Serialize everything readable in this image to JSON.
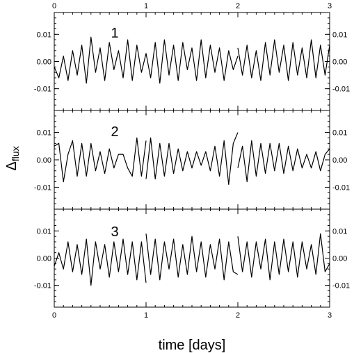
{
  "chart_data": {
    "type": "line",
    "xlabel": "time [days]",
    "ylabel": {
      "symbol": "Δ",
      "subscript": "flux"
    },
    "xlim": [
      0,
      3
    ],
    "xticks": [
      "0",
      "1",
      "2",
      "3"
    ],
    "ylim": [
      -0.018,
      0.018
    ],
    "yticks": [
      "0.01",
      "0.00",
      "-0.01"
    ],
    "ytick_values": [
      0.01,
      0.0,
      -0.01
    ],
    "line_color": "#000000",
    "panels": [
      {
        "label": "1",
        "series": [
          {
            "x": [
              0.0,
              0.05,
              0.1,
              0.15,
              0.2,
              0.25,
              0.3,
              0.35,
              0.4,
              0.45,
              0.5,
              0.55,
              0.6,
              0.65,
              0.7,
              0.75,
              0.8,
              0.85,
              0.9,
              0.95,
              1.0,
              1.05,
              1.1,
              1.15,
              1.2,
              1.25,
              1.3,
              1.35,
              1.4,
              1.45,
              1.5,
              1.55,
              1.6,
              1.65,
              1.7,
              1.75,
              1.8,
              1.85,
              1.9,
              1.95,
              2.0
            ],
            "y": [
              -0.002,
              -0.006,
              0.002,
              -0.007,
              0.004,
              -0.005,
              0.006,
              -0.008,
              0.009,
              -0.004,
              0.005,
              -0.007,
              0.007,
              -0.003,
              0.004,
              -0.006,
              0.008,
              -0.007,
              0.006,
              -0.004,
              0.003,
              -0.006,
              0.007,
              -0.008,
              0.008,
              -0.005,
              0.006,
              -0.007,
              0.007,
              -0.003,
              0.005,
              -0.007,
              0.008,
              -0.006,
              0.006,
              -0.004,
              0.005,
              -0.007,
              0.004,
              -0.003,
              0.002
            ]
          },
          {
            "x": [
              2.0,
              2.05,
              2.1,
              2.15,
              2.2,
              2.25,
              2.3,
              2.35,
              2.4,
              2.45,
              2.5,
              2.55,
              2.6,
              2.65,
              2.7,
              2.75,
              2.8,
              2.85,
              2.9,
              2.95,
              3.0
            ],
            "y": [
              0.005,
              -0.005,
              0.006,
              -0.006,
              0.004,
              -0.007,
              0.007,
              -0.005,
              0.008,
              -0.004,
              0.006,
              -0.007,
              0.007,
              -0.005,
              0.005,
              -0.006,
              0.008,
              -0.006,
              0.006,
              -0.005,
              0.006
            ]
          }
        ]
      },
      {
        "label": "2",
        "series": [
          {
            "x": [
              0.0,
              0.05,
              0.1,
              0.15,
              0.2,
              0.25,
              0.3,
              0.35,
              0.4,
              0.45,
              0.5,
              0.55,
              0.6,
              0.65,
              0.7,
              0.75,
              0.8,
              0.85,
              0.9,
              0.95,
              1.0
            ],
            "y": [
              0.005,
              0.006,
              -0.008,
              0.002,
              0.007,
              -0.006,
              0.006,
              -0.006,
              0.006,
              -0.004,
              0.003,
              -0.005,
              0.004,
              -0.003,
              0.002,
              0.002,
              -0.003,
              -0.006,
              0.008,
              -0.006,
              0.007
            ]
          },
          {
            "x": [
              1.0,
              1.05,
              1.1,
              1.15,
              1.2,
              1.25,
              1.3,
              1.35,
              1.4,
              1.45,
              1.5,
              1.55,
              1.6,
              1.65,
              1.7,
              1.75,
              1.8,
              1.85,
              1.9,
              1.95,
              2.0
            ],
            "y": [
              -0.007,
              0.008,
              -0.007,
              0.006,
              -0.006,
              0.006,
              -0.005,
              0.004,
              -0.004,
              0.003,
              -0.003,
              0.003,
              -0.002,
              0.003,
              -0.004,
              0.005,
              -0.006,
              0.007,
              -0.009,
              0.006,
              0.01
            ]
          },
          {
            "x": [
              2.0,
              2.05,
              2.1,
              2.15,
              2.2,
              2.25,
              2.3,
              2.35,
              2.4,
              2.45,
              2.5,
              2.55,
              2.6,
              2.65,
              2.7,
              2.75,
              2.8,
              2.85,
              2.9,
              2.95,
              3.0
            ],
            "y": [
              -0.003,
              0.005,
              -0.008,
              0.007,
              -0.006,
              0.006,
              -0.005,
              0.006,
              -0.004,
              0.006,
              -0.005,
              0.005,
              -0.004,
              0.004,
              -0.003,
              0.002,
              -0.003,
              0.003,
              -0.004,
              0.002,
              0.004
            ]
          }
        ]
      },
      {
        "label": "3",
        "series": [
          {
            "x": [
              0.0,
              0.05,
              0.1,
              0.15,
              0.2,
              0.25,
              0.3,
              0.35,
              0.4,
              0.45,
              0.5,
              0.55,
              0.6,
              0.65,
              0.7,
              0.75,
              0.8,
              0.85,
              0.9,
              0.95,
              1.0
            ],
            "y": [
              -0.003,
              0.002,
              -0.004,
              0.006,
              -0.005,
              0.005,
              -0.006,
              0.007,
              -0.01,
              0.006,
              -0.004,
              0.005,
              -0.007,
              0.006,
              -0.005,
              0.007,
              -0.006,
              0.006,
              -0.008,
              0.006,
              -0.009
            ]
          },
          {
            "x": [
              1.0,
              1.05,
              1.1,
              1.15,
              1.2,
              1.25,
              1.3,
              1.35,
              1.4,
              1.45,
              1.5,
              1.55,
              1.6,
              1.65,
              1.7,
              1.75,
              1.8,
              1.85,
              1.9,
              1.95,
              2.0
            ],
            "y": [
              0.009,
              -0.006,
              0.007,
              -0.008,
              0.006,
              -0.004,
              0.007,
              -0.007,
              0.005,
              -0.006,
              0.008,
              -0.005,
              0.006,
              -0.007,
              0.005,
              -0.004,
              0.007,
              -0.008,
              0.006,
              -0.005,
              -0.006
            ]
          },
          {
            "x": [
              2.0,
              2.05,
              2.1,
              2.15,
              2.2,
              2.25,
              2.3,
              2.35,
              2.4,
              2.45,
              2.5,
              2.55,
              2.6,
              2.65,
              2.7,
              2.75,
              2.8,
              2.85,
              2.9,
              2.95,
              3.0
            ],
            "y": [
              0.008,
              -0.005,
              0.006,
              -0.007,
              0.006,
              -0.004,
              0.007,
              -0.008,
              0.006,
              -0.006,
              0.007,
              -0.005,
              0.006,
              -0.007,
              0.006,
              -0.004,
              0.005,
              -0.006,
              0.009,
              -0.005,
              -0.002
            ]
          }
        ]
      }
    ]
  }
}
